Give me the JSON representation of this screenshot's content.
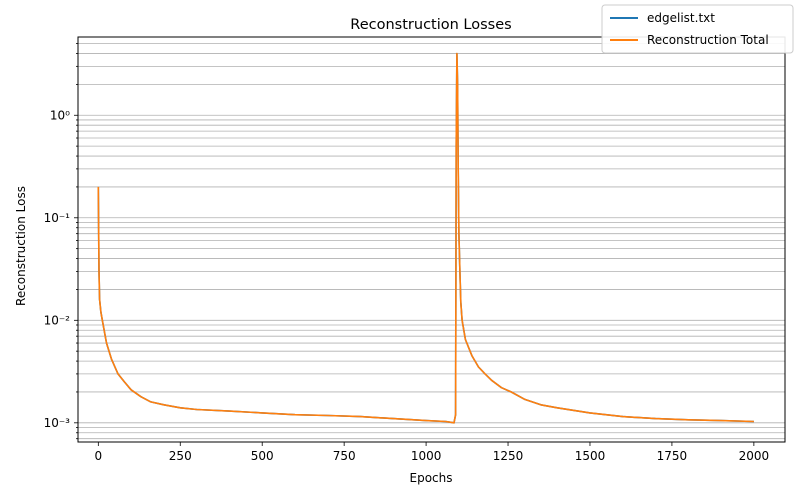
{
  "chart_data": {
    "type": "line",
    "title": "Reconstruction Losses",
    "xlabel": "Epochs",
    "ylabel": "Reconstruction Loss",
    "xlim": [
      -62,
      2095
    ],
    "ylim": [
      0.00065,
      5.8
    ],
    "yscale": "log",
    "grid": "y-major-and-minor",
    "legend_position": "top-right",
    "x_ticks": [
      0,
      250,
      500,
      750,
      1000,
      1250,
      1500,
      1750,
      2000
    ],
    "x_tick_labels": [
      "0",
      "250",
      "500",
      "750",
      "1000",
      "1250",
      "1500",
      "1750",
      "2000"
    ],
    "y_ticks": [
      0.001,
      0.01,
      0.1,
      1
    ],
    "y_tick_labels": [
      "10⁻³",
      "10⁻²",
      "10⁻¹",
      "10⁰"
    ],
    "series": [
      {
        "name": "edgelist.txt",
        "color": "#1f77b4",
        "x": [
          0,
          2,
          4,
          8,
          15,
          25,
          40,
          60,
          80,
          100,
          130,
          160,
          200,
          250,
          300,
          400,
          500,
          600,
          700,
          800,
          900,
          1000,
          1060,
          1085,
          1090,
          1092,
          1094,
          1096,
          1098,
          1100,
          1103,
          1106,
          1110,
          1120,
          1140,
          1160,
          1180,
          1200,
          1230,
          1260,
          1300,
          1350,
          1400,
          1500,
          1600,
          1700,
          1800,
          1900,
          2000
        ],
        "values": [
          0.2,
          0.03,
          0.016,
          0.012,
          0.009,
          0.006,
          0.0042,
          0.003,
          0.0025,
          0.0021,
          0.0018,
          0.0016,
          0.0015,
          0.0014,
          0.00135,
          0.0013,
          0.00125,
          0.0012,
          0.00118,
          0.00115,
          0.0011,
          0.00105,
          0.00103,
          0.001,
          0.0012,
          0.5,
          4.0,
          2.0,
          0.3,
          0.07,
          0.03,
          0.015,
          0.01,
          0.0065,
          0.0045,
          0.0035,
          0.003,
          0.0026,
          0.0022,
          0.002,
          0.0017,
          0.0015,
          0.0014,
          0.00125,
          0.00115,
          0.0011,
          0.00107,
          0.00105,
          0.00103
        ]
      },
      {
        "name": "Reconstruction Total",
        "color": "#ff7f0e",
        "x": [
          0,
          2,
          4,
          8,
          15,
          25,
          40,
          60,
          80,
          100,
          130,
          160,
          200,
          250,
          300,
          400,
          500,
          600,
          700,
          800,
          900,
          1000,
          1060,
          1085,
          1090,
          1092,
          1094,
          1096,
          1098,
          1100,
          1103,
          1106,
          1110,
          1120,
          1140,
          1160,
          1180,
          1200,
          1230,
          1260,
          1300,
          1350,
          1400,
          1500,
          1600,
          1700,
          1800,
          1900,
          2000
        ],
        "values": [
          0.2,
          0.03,
          0.016,
          0.012,
          0.009,
          0.006,
          0.0042,
          0.003,
          0.0025,
          0.0021,
          0.0018,
          0.0016,
          0.0015,
          0.0014,
          0.00135,
          0.0013,
          0.00125,
          0.0012,
          0.00118,
          0.00115,
          0.0011,
          0.00105,
          0.00103,
          0.001,
          0.0012,
          0.5,
          4.0,
          2.0,
          0.3,
          0.07,
          0.03,
          0.015,
          0.01,
          0.0065,
          0.0045,
          0.0035,
          0.003,
          0.0026,
          0.0022,
          0.002,
          0.0017,
          0.0015,
          0.0014,
          0.00125,
          0.00115,
          0.0011,
          0.00107,
          0.00105,
          0.00103
        ]
      }
    ]
  }
}
